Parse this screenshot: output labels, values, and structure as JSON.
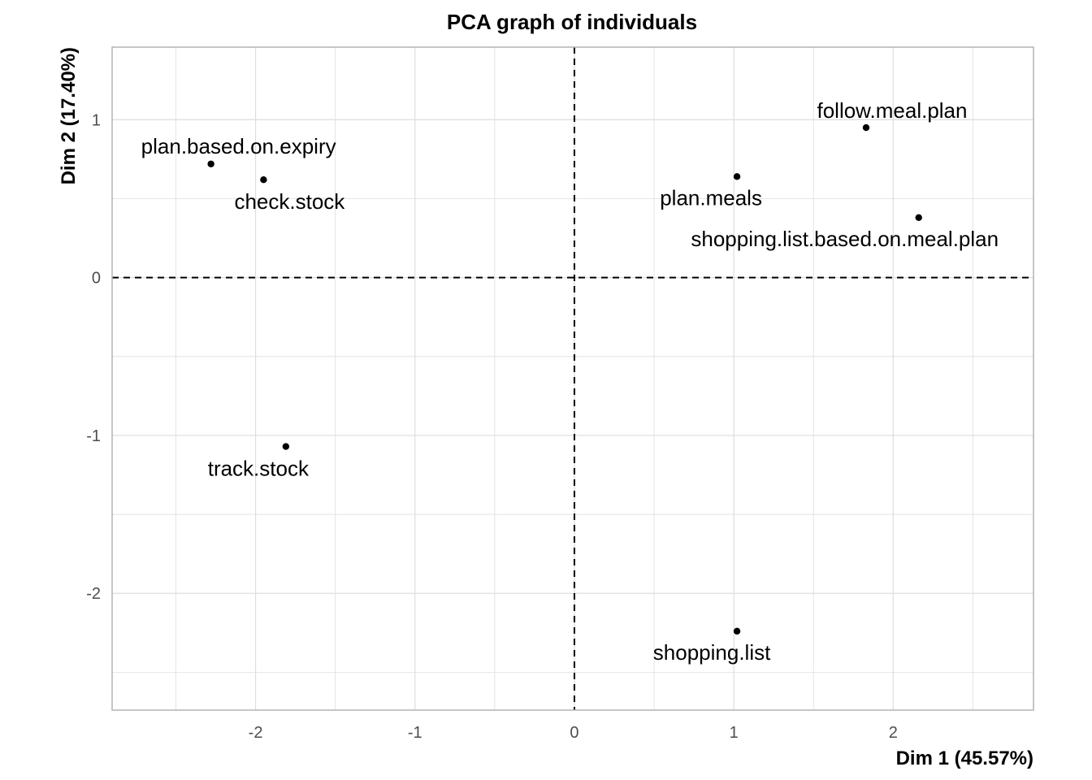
{
  "chart_data": {
    "type": "scatter",
    "title": "PCA graph of individuals",
    "xlabel": "Dim 1 (45.57%)",
    "ylabel": "Dim 2 (17.40%)",
    "xlim": [
      -2.9,
      2.88
    ],
    "ylim": [
      -2.74,
      1.46
    ],
    "x_ticks": [
      -2,
      -1,
      0,
      1,
      2
    ],
    "y_ticks": [
      -2,
      -1,
      0,
      1
    ],
    "x_tick_labels": [
      "-2",
      "-1",
      "0",
      "1",
      "2"
    ],
    "y_tick_labels": [
      "-2",
      "-1",
      "0",
      "1"
    ],
    "grid": true,
    "reference_lines": {
      "x": 0,
      "y": 0,
      "style": "dashed"
    },
    "points": [
      {
        "label": "plan.based.on.expiry",
        "x": -2.28,
        "y": 0.72
      },
      {
        "label": "check.stock",
        "x": -1.95,
        "y": 0.62
      },
      {
        "label": "track.stock",
        "x": -1.81,
        "y": -1.07
      },
      {
        "label": "follow.meal.plan",
        "x": 1.83,
        "y": 0.95
      },
      {
        "label": "plan.meals",
        "x": 1.02,
        "y": 0.64
      },
      {
        "label": "shopping.list.based.on.meal.plan",
        "x": 2.16,
        "y": 0.38
      },
      {
        "label": "shopping.list",
        "x": 1.02,
        "y": -2.24
      }
    ],
    "colors": {
      "points": "#000000",
      "grid": "#dedede",
      "panel_border": "#b3b3b3",
      "tick_text": "#4d4d4d"
    }
  }
}
